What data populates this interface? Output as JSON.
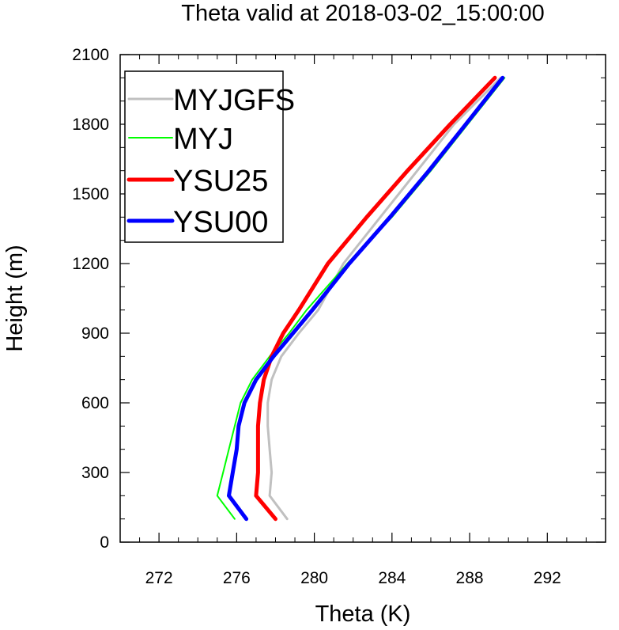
{
  "chart_data": {
    "type": "line",
    "title": "Theta valid at 2018-03-02_15:00:00",
    "xlabel": "Theta (K)",
    "ylabel": "Height (m)",
    "xlim": [
      270,
      295
    ],
    "ylim": [
      0,
      2100
    ],
    "xticks": [
      272,
      276,
      280,
      284,
      288,
      292
    ],
    "yticks": [
      0,
      300,
      600,
      900,
      1200,
      1500,
      1800,
      2100
    ],
    "legend_position": "top-left",
    "series": [
      {
        "name": "MYJGFS",
        "color": "#c0c0c0",
        "width": 3,
        "points": [
          [
            278.6,
            100
          ],
          [
            277.7,
            200
          ],
          [
            277.8,
            300
          ],
          [
            277.7,
            400
          ],
          [
            277.6,
            500
          ],
          [
            277.6,
            600
          ],
          [
            277.8,
            700
          ],
          [
            278.3,
            800
          ],
          [
            279.2,
            900
          ],
          [
            280.2,
            1000
          ],
          [
            281.5,
            1200
          ],
          [
            283.4,
            1400
          ],
          [
            285.3,
            1600
          ],
          [
            287.2,
            1800
          ],
          [
            289.6,
            2000
          ]
        ]
      },
      {
        "name": "MYJ",
        "color": "#00ff00",
        "width": 2,
        "points": [
          [
            275.9,
            100
          ],
          [
            275.0,
            200
          ],
          [
            275.3,
            300
          ],
          [
            275.6,
            400
          ],
          [
            275.9,
            500
          ],
          [
            276.2,
            600
          ],
          [
            276.8,
            700
          ],
          [
            277.7,
            800
          ],
          [
            278.7,
            900
          ],
          [
            279.6,
            1000
          ],
          [
            281.7,
            1200
          ],
          [
            284.0,
            1400
          ],
          [
            286.0,
            1600
          ],
          [
            287.9,
            1800
          ],
          [
            289.8,
            2000
          ]
        ]
      },
      {
        "name": "YSU25",
        "color": "#ff0000",
        "width": 5,
        "points": [
          [
            278.0,
            100
          ],
          [
            277.0,
            200
          ],
          [
            277.1,
            300
          ],
          [
            277.1,
            400
          ],
          [
            277.1,
            500
          ],
          [
            277.2,
            600
          ],
          [
            277.4,
            700
          ],
          [
            277.8,
            800
          ],
          [
            278.4,
            900
          ],
          [
            279.2,
            1000
          ],
          [
            280.7,
            1200
          ],
          [
            282.7,
            1400
          ],
          [
            284.8,
            1600
          ],
          [
            287.0,
            1800
          ],
          [
            289.3,
            2000
          ]
        ]
      },
      {
        "name": "YSU00",
        "color": "#0000ff",
        "width": 5,
        "points": [
          [
            276.5,
            100
          ],
          [
            275.6,
            200
          ],
          [
            275.8,
            300
          ],
          [
            276.0,
            400
          ],
          [
            276.1,
            500
          ],
          [
            276.4,
            600
          ],
          [
            277.0,
            700
          ],
          [
            277.9,
            800
          ],
          [
            278.9,
            900
          ],
          [
            279.9,
            1000
          ],
          [
            281.8,
            1200
          ],
          [
            283.9,
            1400
          ],
          [
            285.9,
            1600
          ],
          [
            287.8,
            1800
          ],
          [
            289.7,
            2000
          ]
        ]
      }
    ]
  }
}
